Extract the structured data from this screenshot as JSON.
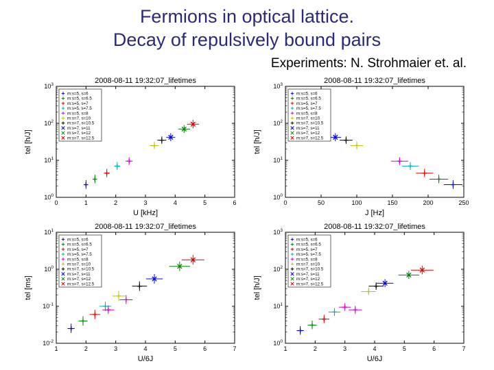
{
  "title_line1": "Fermions in optical lattice.",
  "title_line2": "Decay of repulsively bound pairs",
  "subtitle": "Experiments: N. Strohmaier et. al.",
  "panel_title": "2008-08-11 19:32:07_lifetimes",
  "legend_items": [
    {
      "label": "m:s=5, s=6",
      "color": "#0000e0",
      "marker": "+"
    },
    {
      "label": "m:s=5, s=6.5",
      "color": "#008000",
      "marker": "+"
    },
    {
      "label": "m:s=5, s=7",
      "color": "#e00000",
      "marker": "+"
    },
    {
      "label": "m:s=5, s=7.5",
      "color": "#00b0b0",
      "marker": "+"
    },
    {
      "label": "m:s=5, s=8",
      "color": "#d000d0",
      "marker": "+"
    },
    {
      "label": "m:s=7, s=10",
      "color": "#c0c000",
      "marker": "+"
    },
    {
      "label": "m:s=7, s=10.5",
      "color": "#000000",
      "marker": "+"
    },
    {
      "label": "m:s=7, s=11",
      "color": "#0000e0",
      "marker": "x"
    },
    {
      "label": "m:s=7, s=12",
      "color": "#008000",
      "marker": "x"
    },
    {
      "label": "m:s=7, s=12.5",
      "color": "#e00000",
      "marker": "x"
    }
  ],
  "panels": [
    {
      "xlabel": "U [kHz]",
      "ylabel": "tel [h/J]",
      "xlim": [
        0,
        6
      ],
      "xticks": [
        0,
        1,
        2,
        3,
        4,
        5,
        6
      ],
      "yscale": "log",
      "ylim": [
        1,
        1000
      ],
      "yticks_exp": [
        0,
        1,
        2,
        3
      ],
      "legend_pos": "upper-left",
      "points": [
        {
          "x": 1.0,
          "y": 2.2,
          "xel": 0.05,
          "xer": 0.05,
          "yel": 0.5,
          "yer": 0.7,
          "c": 0
        },
        {
          "x": 1.3,
          "y": 3.1,
          "xel": 0.05,
          "xer": 0.05,
          "yel": 0.7,
          "yer": 1.0,
          "c": 1
        },
        {
          "x": 1.7,
          "y": 4.5,
          "xel": 0.1,
          "xer": 0.1,
          "yel": 1.0,
          "yer": 1.4,
          "c": 2
        },
        {
          "x": 2.05,
          "y": 7.0,
          "xel": 0.1,
          "xer": 0.1,
          "yel": 1.5,
          "yer": 2.0,
          "c": 3
        },
        {
          "x": 2.45,
          "y": 9.5,
          "xel": 0.12,
          "xer": 0.12,
          "yel": 2.0,
          "yer": 2.6,
          "c": 4
        },
        {
          "x": 3.3,
          "y": 25,
          "xel": 0.15,
          "xer": 0.15,
          "yel": 5,
          "yer": 7,
          "c": 5
        },
        {
          "x": 3.55,
          "y": 35,
          "xel": 0.15,
          "xer": 0.15,
          "yel": 7,
          "yer": 9,
          "c": 6
        },
        {
          "x": 3.85,
          "y": 42,
          "xel": 0.15,
          "xer": 0.15,
          "yel": 9,
          "yer": 12,
          "c": 7
        },
        {
          "x": 4.3,
          "y": 70,
          "xel": 0.2,
          "xer": 0.2,
          "yel": 15,
          "yer": 20,
          "c": 8
        },
        {
          "x": 4.6,
          "y": 95,
          "xel": 0.2,
          "xer": 0.2,
          "yel": 22,
          "yer": 30,
          "c": 9
        }
      ]
    },
    {
      "xlabel": "J [Hz]",
      "ylabel": "tel [h/J]",
      "xlim": [
        0,
        250
      ],
      "xticks": [
        0,
        50,
        100,
        150,
        200,
        250
      ],
      "yscale": "log",
      "ylim": [
        1,
        1000
      ],
      "yticks_exp": [
        0,
        1,
        2,
        3
      ],
      "legend_pos": "upper-left",
      "points": [
        {
          "x": 45,
          "y": 95,
          "xel": 8,
          "xer": 8,
          "yel": 22,
          "yer": 30,
          "c": 9
        },
        {
          "x": 55,
          "y": 70,
          "xel": 8,
          "xer": 8,
          "yel": 15,
          "yer": 20,
          "c": 8
        },
        {
          "x": 70,
          "y": 42,
          "xel": 8,
          "xer": 8,
          "yel": 9,
          "yer": 12,
          "c": 7
        },
        {
          "x": 85,
          "y": 35,
          "xel": 9,
          "xer": 9,
          "yel": 7,
          "yer": 9,
          "c": 6
        },
        {
          "x": 100,
          "y": 25,
          "xel": 9,
          "xer": 9,
          "yel": 5,
          "yer": 7,
          "c": 5
        },
        {
          "x": 160,
          "y": 9.5,
          "xel": 12,
          "xer": 12,
          "yel": 2.0,
          "yer": 2.6,
          "c": 4
        },
        {
          "x": 175,
          "y": 7.0,
          "xel": 12,
          "xer": 12,
          "yel": 1.5,
          "yer": 2.0,
          "c": 3
        },
        {
          "x": 195,
          "y": 4.5,
          "xel": 12,
          "xer": 12,
          "yel": 1.0,
          "yer": 1.4,
          "c": 2
        },
        {
          "x": 215,
          "y": 3.1,
          "xel": 13,
          "xer": 13,
          "yel": 0.7,
          "yer": 1.0,
          "c": 1
        },
        {
          "x": 235,
          "y": 2.2,
          "xel": 13,
          "xer": 13,
          "yel": 0.5,
          "yer": 0.7,
          "c": 0
        }
      ]
    },
    {
      "xlabel": "U/6J",
      "ylabel": "tel [ms]",
      "xlim": [
        1,
        7
      ],
      "xticks": [
        1,
        2,
        3,
        4,
        5,
        6,
        7
      ],
      "yscale": "log",
      "ylim": [
        0.01,
        10
      ],
      "yticks_exp": [
        -2,
        -1,
        0,
        1
      ],
      "legend_pos": "upper-left",
      "points": [
        {
          "x": 1.5,
          "y": 0.025,
          "xel": 0.12,
          "xer": 0.12,
          "yel": 0.006,
          "yer": 0.009,
          "c": 0
        },
        {
          "x": 1.9,
          "y": 0.04,
          "xel": 0.15,
          "xer": 0.15,
          "yel": 0.01,
          "yer": 0.014,
          "c": 1
        },
        {
          "x": 2.3,
          "y": 0.06,
          "xel": 0.18,
          "xer": 0.18,
          "yel": 0.015,
          "yer": 0.02,
          "c": 2
        },
        {
          "x": 2.65,
          "y": 0.1,
          "xel": 0.2,
          "xer": 0.2,
          "yel": 0.025,
          "yer": 0.033,
          "c": 3
        },
        {
          "x": 2.75,
          "y": 0.08,
          "xel": 0.2,
          "xer": 0.2,
          "yel": 0.018,
          "yer": 0.025,
          "c": 4
        },
        {
          "x": 3.1,
          "y": 0.19,
          "xel": 0.22,
          "xer": 0.22,
          "yel": 0.05,
          "yer": 0.07,
          "c": 5
        },
        {
          "x": 3.35,
          "y": 0.15,
          "xel": 0.22,
          "xer": 0.22,
          "yel": 0.035,
          "yer": 0.05,
          "c": 4
        },
        {
          "x": 3.8,
          "y": 0.35,
          "xel": 0.25,
          "xer": 0.25,
          "yel": 0.09,
          "yer": 0.12,
          "c": 6
        },
        {
          "x": 4.3,
          "y": 0.55,
          "xel": 0.28,
          "xer": 0.28,
          "yel": 0.14,
          "yer": 0.19,
          "c": 7
        },
        {
          "x": 5.15,
          "y": 1.2,
          "xel": 0.35,
          "xer": 0.35,
          "yel": 0.3,
          "yer": 0.42,
          "c": 8
        },
        {
          "x": 5.6,
          "y": 1.8,
          "xel": 0.38,
          "xer": 0.38,
          "yel": 0.45,
          "yer": 0.63,
          "c": 9
        }
      ]
    },
    {
      "xlabel": "U/6J",
      "ylabel": "tel [h/J]",
      "xlim": [
        1,
        7
      ],
      "xticks": [
        1,
        2,
        3,
        4,
        5,
        6,
        7
      ],
      "yscale": "log",
      "ylim": [
        1,
        1000
      ],
      "yticks_exp": [
        0,
        1,
        2,
        3
      ],
      "legend_pos": "upper-left",
      "points": [
        {
          "x": 1.5,
          "y": 2.2,
          "xel": 0.12,
          "xer": 0.12,
          "yel": 0.5,
          "yer": 0.7,
          "c": 0
        },
        {
          "x": 1.9,
          "y": 3.1,
          "xel": 0.15,
          "xer": 0.15,
          "yel": 0.7,
          "yer": 1.0,
          "c": 1
        },
        {
          "x": 2.3,
          "y": 4.5,
          "xel": 0.18,
          "xer": 0.18,
          "yel": 1.0,
          "yer": 1.4,
          "c": 2
        },
        {
          "x": 2.65,
          "y": 7.0,
          "xel": 0.2,
          "xer": 0.2,
          "yel": 1.5,
          "yer": 2.0,
          "c": 3
        },
        {
          "x": 3.0,
          "y": 9.5,
          "xel": 0.2,
          "xer": 0.2,
          "yel": 2.0,
          "yer": 2.6,
          "c": 4
        },
        {
          "x": 3.35,
          "y": 8.0,
          "xel": 0.22,
          "xer": 0.22,
          "yel": 1.8,
          "yer": 2.3,
          "c": 4
        },
        {
          "x": 3.8,
          "y": 25,
          "xel": 0.25,
          "xer": 0.25,
          "yel": 5,
          "yer": 7,
          "c": 5
        },
        {
          "x": 4.05,
          "y": 35,
          "xel": 0.25,
          "xer": 0.25,
          "yel": 7,
          "yer": 9,
          "c": 6
        },
        {
          "x": 4.35,
          "y": 42,
          "xel": 0.28,
          "xer": 0.28,
          "yel": 9,
          "yer": 12,
          "c": 7
        },
        {
          "x": 5.15,
          "y": 70,
          "xel": 0.35,
          "xer": 0.35,
          "yel": 15,
          "yer": 20,
          "c": 8
        },
        {
          "x": 5.6,
          "y": 95,
          "xel": 0.38,
          "xer": 0.38,
          "yel": 22,
          "yer": 30,
          "c": 9
        }
      ]
    }
  ],
  "axis_color": "#000000",
  "background_color": "#ffffff",
  "title_color": "#2a2a7a"
}
